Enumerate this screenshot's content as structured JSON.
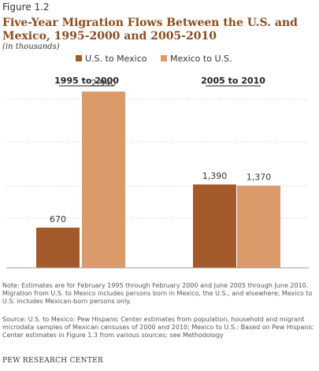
{
  "figure_label": "Figure 1.2",
  "subtitle": "(in thousands)",
  "note": "Note: Estimates are for February 1995 through February 2000 and June 2005 through June 2010. Migration from U.S. to Mexico includes persons born in Mexico, the U.S., and elsewhere; Mexico to U.S. includes Mexican-born persons only.",
  "source": "Source: U.S. to Mexico: Pew Hispanic Center estimates from population, household and migrant microdata samples of Mexican censuses of 2000 and 2010; Mexico to U.S.: Based on Pew Hispanic Center estimates in Figure 1.3 from various sources; see Methodology",
  "footer": "PEW RESEARCH CENTER",
  "colors": {
    "us_to_mexico": "#a3592a",
    "mexico_to_us": "#dc9a6b"
  },
  "chart_data": {
    "type": "bar",
    "title": "Five-Year Migration Flows Between the U.S. and Mexico, 1995-2000  and 2005-2010",
    "categories": [
      "1995 to 2000",
      "2005 to 2010"
    ],
    "series": [
      {
        "name": "U.S. to Mexico",
        "values": [
          670,
          1390
        ],
        "labels": [
          "670",
          "1,390"
        ]
      },
      {
        "name": "Mexico to U.S.",
        "values": [
          2940,
          1370
        ],
        "labels": [
          "2,940",
          "1,370"
        ]
      }
    ],
    "ylim": [
      0,
      3350
    ],
    "grid": true,
    "legend": "top-center"
  }
}
